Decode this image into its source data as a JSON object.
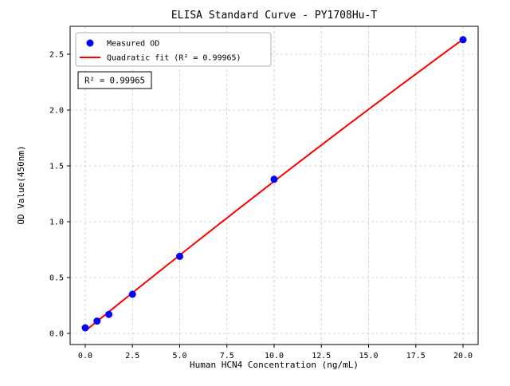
{
  "chart_data": {
    "type": "scatter",
    "title": "ELISA Standard Curve - PY1708Hu-T",
    "xlabel": "Human HCN4 Concentration (ng/mL)",
    "ylabel": "OD Value(450nm)",
    "xlim": [
      -0.8,
      20.8
    ],
    "ylim": [
      -0.1,
      2.75
    ],
    "x_ticks": [
      0.0,
      2.5,
      5.0,
      7.5,
      10.0,
      12.5,
      15.0,
      17.5,
      20.0
    ],
    "x_tick_labels": [
      "0.0",
      "2.5",
      "5.0",
      "7.5",
      "10.0",
      "12.5",
      "15.0",
      "17.5",
      "20.0"
    ],
    "y_ticks": [
      0.0,
      0.5,
      1.0,
      1.5,
      2.0,
      2.5
    ],
    "y_tick_labels": [
      "0.0",
      "0.5",
      "1.0",
      "1.5",
      "2.0",
      "2.5"
    ],
    "grid": true,
    "legend_position": "upper left",
    "series": [
      {
        "name": "Measured OD",
        "type": "scatter",
        "color": "#0000ff",
        "x": [
          0,
          0.625,
          1.25,
          2.5,
          5,
          10,
          20
        ],
        "y": [
          0.05,
          0.11,
          0.17,
          0.35,
          0.69,
          1.38,
          2.63
        ]
      },
      {
        "name": "Quadratic fit (R² = 0.99965)",
        "type": "line",
        "fit": "quadratic",
        "color": "#ff0000"
      }
    ],
    "annotation": "R² = 0.99965",
    "colors": {
      "grid": "#c8c8c8",
      "axis": "#000000",
      "legend_border": "#b0b0b0",
      "anno_border": "#000000"
    }
  }
}
